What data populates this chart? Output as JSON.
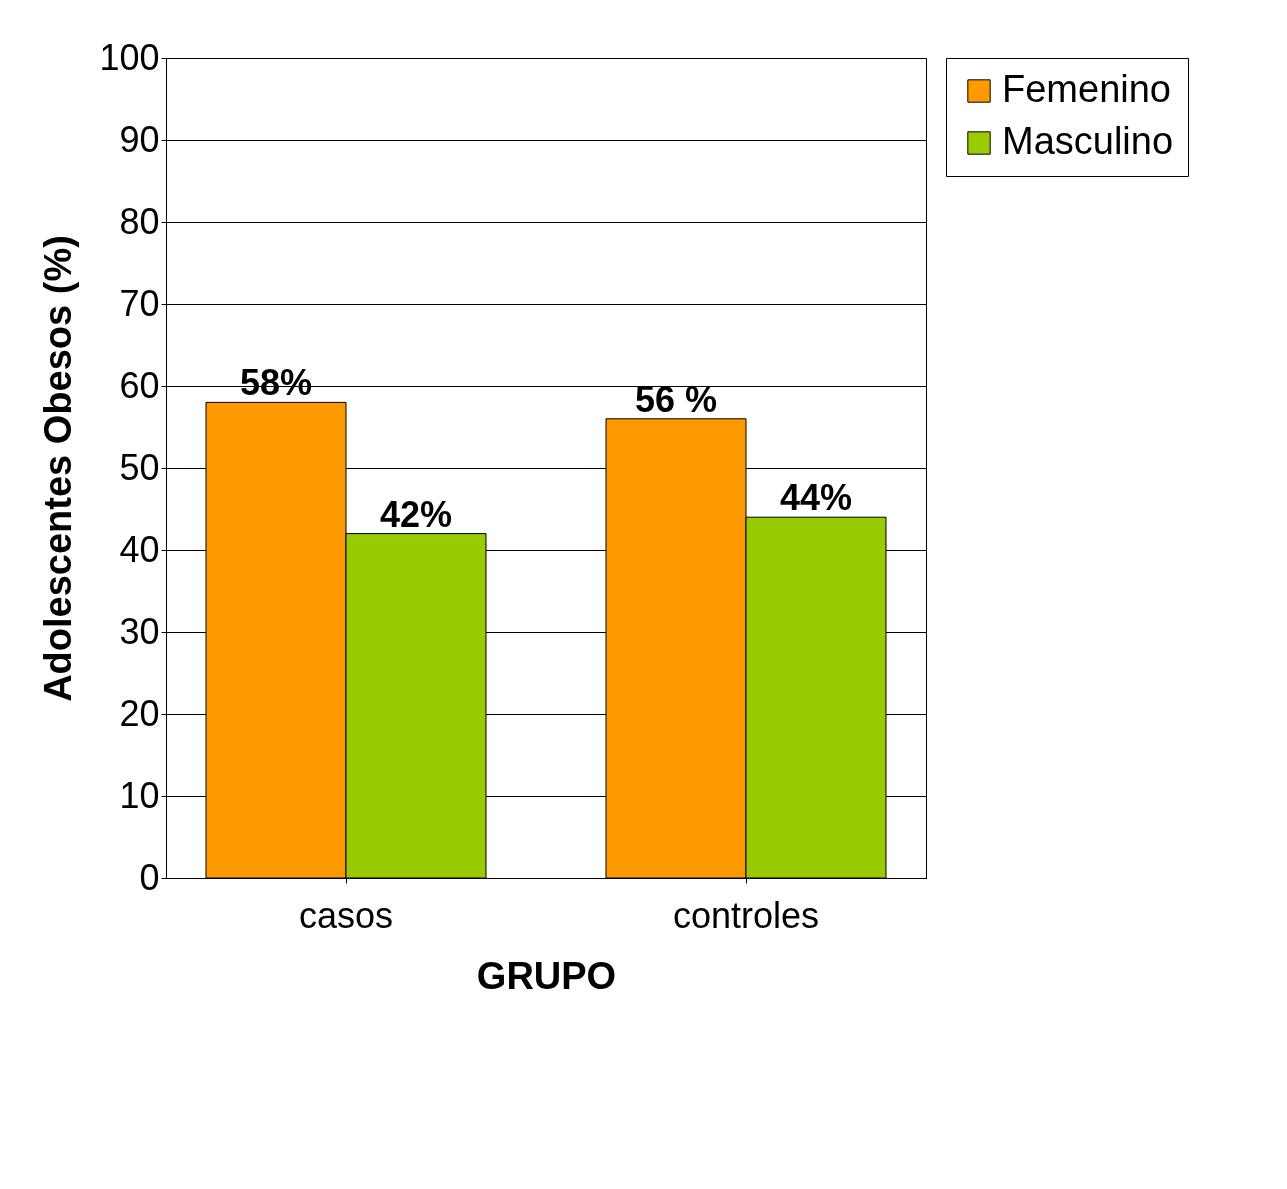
{
  "chart_data": {
    "type": "bar",
    "xlabel": "GRUPO",
    "ylabel": "Adolescentes Obesos (%)",
    "categories": [
      "casos",
      "controles"
    ],
    "series": [
      {
        "name": "Femenino",
        "color": "#ff9900",
        "values": [
          58,
          56
        ],
        "value_labels": [
          "58%",
          "56 %"
        ]
      },
      {
        "name": "Masculino",
        "color": "#99cc00",
        "values": [
          42,
          44
        ],
        "value_labels": [
          "42%",
          "44%"
        ]
      }
    ],
    "ylim": [
      0,
      100
    ],
    "yticks": [
      0,
      10,
      20,
      30,
      40,
      50,
      60,
      70,
      80,
      90,
      100
    ],
    "grid": "y",
    "legend": "right"
  }
}
